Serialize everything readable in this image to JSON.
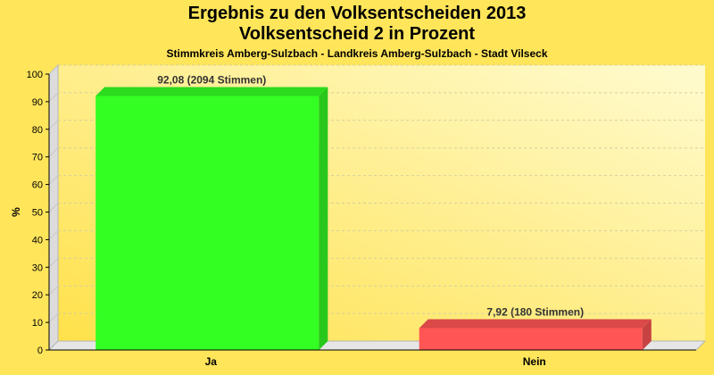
{
  "chart_data": {
    "type": "bar",
    "title": "Ergebnis zu den Volksentscheiden 2013",
    "subtitle": "Volksentscheid 2 in Prozent",
    "subsubtitle": "Stimmkreis Amberg-Sulzbach - Landkreis Amberg-Sulzbach - Stadt Vilseck",
    "categories": [
      "Ja",
      "Nein"
    ],
    "values": [
      92.08,
      7.92
    ],
    "data_labels": [
      "92,08 (2094 Stimmen)",
      "7,92 (180 Stimmen)"
    ],
    "bar_colors": [
      "#33ff22",
      "#ff5555"
    ],
    "ylabel": "%",
    "xlabel": "",
    "ylim": [
      0,
      100
    ],
    "yticks": [
      0,
      10,
      20,
      30,
      40,
      50,
      60,
      70,
      80,
      90,
      100
    ],
    "grid": true,
    "legend": "none"
  }
}
